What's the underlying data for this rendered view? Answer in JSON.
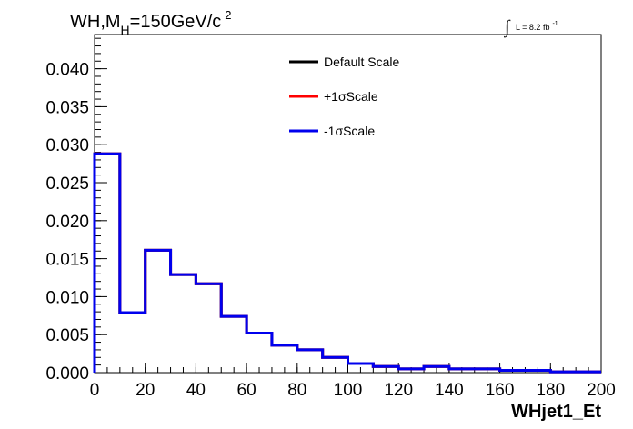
{
  "chart_data": {
    "type": "line",
    "style": "step-histogram",
    "title": {
      "main": "WH,M",
      "subscript": "H",
      "rest": "=150GeV/c",
      "superscript": "2"
    },
    "lumi": {
      "integral": "∫",
      "text": "L = 8.2 fb",
      "superscript": "-1"
    },
    "xlabel": "WHjet1_Et",
    "ylabel": "",
    "xlim": [
      0,
      200
    ],
    "ylim": [
      0,
      0.0445
    ],
    "x_ticks": [
      "0",
      "20",
      "40",
      "60",
      "80",
      "100",
      "120",
      "140",
      "160",
      "180",
      "200"
    ],
    "y_ticks": [
      "0.000",
      "0.005",
      "0.010",
      "0.015",
      "0.020",
      "0.025",
      "0.030",
      "0.035",
      "0.040"
    ],
    "bin_edges": [
      0,
      10,
      20,
      30,
      40,
      50,
      60,
      70,
      80,
      90,
      100,
      110,
      120,
      130,
      140,
      150,
      160,
      170,
      180,
      190,
      200
    ],
    "series": [
      {
        "name": "Default Scale",
        "color": "#000000",
        "values": [
          0.0288,
          0.0079,
          0.0161,
          0.0129,
          0.0117,
          0.0074,
          0.0052,
          0.0036,
          0.003,
          0.002,
          0.0012,
          0.0008,
          0.0005,
          0.0008,
          0.0005,
          0.0005,
          0.0003,
          0.0003,
          0.0001,
          0.0001
        ]
      },
      {
        "name": "+1σScale",
        "color": "#ff0000",
        "values": [
          0.0288,
          0.0079,
          0.0161,
          0.0129,
          0.0117,
          0.0074,
          0.0052,
          0.0036,
          0.003,
          0.002,
          0.0012,
          0.0008,
          0.0005,
          0.0008,
          0.0005,
          0.0005,
          0.0003,
          0.0003,
          0.0001,
          0.0001
        ]
      },
      {
        "name": "-1σScale",
        "color": "#0000ee",
        "values": [
          0.0288,
          0.0079,
          0.0161,
          0.0129,
          0.0117,
          0.0074,
          0.0052,
          0.0036,
          0.003,
          0.002,
          0.0012,
          0.0008,
          0.0005,
          0.0008,
          0.0005,
          0.0005,
          0.0003,
          0.0003,
          0.0001,
          0.0001
        ]
      }
    ],
    "legend_position": "top-right",
    "grid": false
  }
}
